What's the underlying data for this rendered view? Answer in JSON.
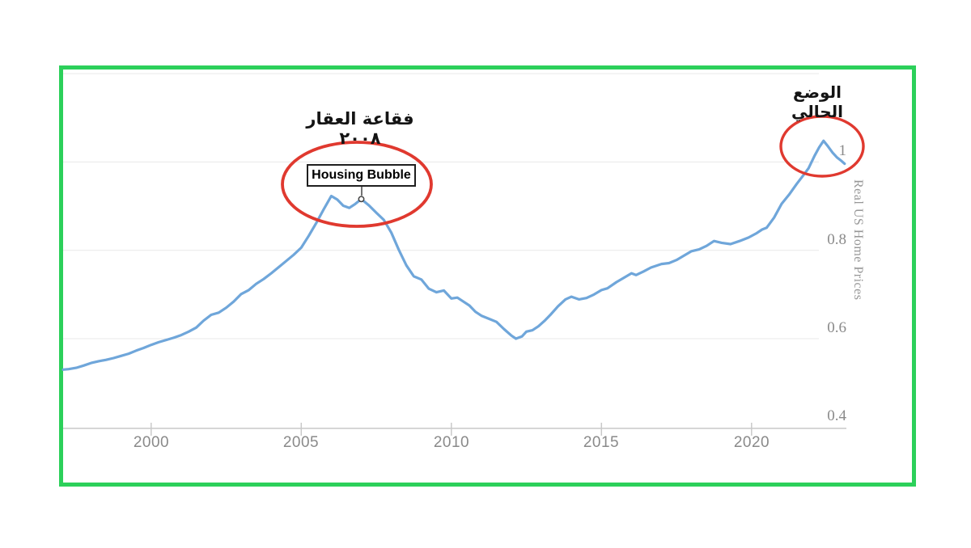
{
  "annotations": {
    "bubble_label_ar": "فقاعة العقار ٢٠٠٨",
    "current_label_ar": "الوضع الحالي",
    "housing_bubble_box_label": "Housing Bubble"
  },
  "colors": {
    "frame_green": "#2cd05a",
    "line_blue": "#6fa6da",
    "ellipse_red": "#e0392f",
    "gridline": "#e9e9e9",
    "axis": "#c9c9c9",
    "tick_label": "#8a8a8a"
  },
  "chart_data": {
    "type": "line",
    "title": "",
    "ylabel": "Real US Home Prices",
    "xlabel": "",
    "legend": "none",
    "grid": "horizontal",
    "x_ticks": [
      2000,
      2005,
      2010,
      2015,
      2020
    ],
    "y_ticks": [
      {
        "value": 1.0,
        "label": "1"
      },
      {
        "value": 0.8,
        "label": "0.8"
      },
      {
        "value": 0.6,
        "label": "0.6"
      },
      {
        "value": 0.4,
        "label": "0.4"
      }
    ],
    "y_gridlines": [
      1.2,
      1.0,
      0.8,
      0.6
    ],
    "xlim": [
      1997.0,
      2023.3
    ],
    "ylim": [
      0.4,
      1.25
    ],
    "marked_point": {
      "x": 2007.0,
      "y": 0.916,
      "label": "Housing Bubble"
    },
    "circled_regions": [
      {
        "name": "housing-bubble-2008",
        "x_center": 2006.85,
        "y_center": 0.895
      },
      {
        "name": "current-situation",
        "x_center": 2022.35,
        "y_center": 1.035
      }
    ],
    "series": [
      {
        "name": "Real US Home Prices",
        "color": "#6fa6da",
        "x": [
          1997.07,
          1997.25,
          1997.5,
          1997.75,
          1998.0,
          1998.25,
          1998.5,
          1998.75,
          1999.0,
          1999.25,
          1999.5,
          1999.75,
          2000.0,
          2000.25,
          2000.5,
          2000.75,
          2001.0,
          2001.25,
          2001.5,
          2001.75,
          2002.0,
          2002.25,
          2002.5,
          2002.75,
          2003.0,
          2003.25,
          2003.5,
          2003.75,
          2004.0,
          2004.25,
          2004.5,
          2004.75,
          2005.0,
          2005.25,
          2005.5,
          2005.75,
          2006.0,
          2006.2,
          2006.4,
          2006.6,
          2006.8,
          2007.0,
          2007.25,
          2007.5,
          2007.75,
          2008.0,
          2008.25,
          2008.5,
          2008.75,
          2009.0,
          2009.25,
          2009.5,
          2009.75,
          2010.0,
          2010.2,
          2010.4,
          2010.6,
          2010.8,
          2011.0,
          2011.25,
          2011.5,
          2011.75,
          2012.0,
          2012.15,
          2012.35,
          2012.5,
          2012.7,
          2012.9,
          2013.1,
          2013.3,
          2013.55,
          2013.8,
          2014.0,
          2014.25,
          2014.5,
          2014.75,
          2015.0,
          2015.2,
          2015.5,
          2015.75,
          2016.0,
          2016.15,
          2016.4,
          2016.65,
          2017.0,
          2017.25,
          2017.5,
          2017.75,
          2018.0,
          2018.25,
          2018.5,
          2018.75,
          2019.0,
          2019.3,
          2019.6,
          2019.9,
          2020.15,
          2020.35,
          2020.5,
          2020.75,
          2021.0,
          2021.25,
          2021.5,
          2021.75,
          2021.9,
          2022.1,
          2022.25,
          2022.4,
          2022.55,
          2022.7,
          2022.85,
          2023.0,
          2023.1
        ],
        "y": [
          0.53,
          0.531,
          0.534,
          0.539,
          0.545,
          0.549,
          0.552,
          0.556,
          0.561,
          0.566,
          0.573,
          0.579,
          0.586,
          0.592,
          0.597,
          0.602,
          0.608,
          0.616,
          0.625,
          0.641,
          0.654,
          0.659,
          0.67,
          0.684,
          0.701,
          0.71,
          0.724,
          0.735,
          0.748,
          0.762,
          0.776,
          0.79,
          0.806,
          0.833,
          0.862,
          0.893,
          0.923,
          0.915,
          0.901,
          0.896,
          0.905,
          0.916,
          0.902,
          0.885,
          0.869,
          0.84,
          0.801,
          0.766,
          0.741,
          0.734,
          0.713,
          0.705,
          0.709,
          0.691,
          0.693,
          0.684,
          0.675,
          0.661,
          0.652,
          0.645,
          0.638,
          0.622,
          0.607,
          0.6,
          0.605,
          0.616,
          0.619,
          0.628,
          0.64,
          0.654,
          0.673,
          0.689,
          0.695,
          0.689,
          0.692,
          0.7,
          0.71,
          0.714,
          0.728,
          0.738,
          0.748,
          0.744,
          0.752,
          0.761,
          0.769,
          0.771,
          0.778,
          0.788,
          0.798,
          0.802,
          0.81,
          0.821,
          0.817,
          0.814,
          0.821,
          0.829,
          0.838,
          0.847,
          0.851,
          0.874,
          0.905,
          0.926,
          0.95,
          0.972,
          0.986,
          1.014,
          1.033,
          1.048,
          1.035,
          1.021,
          1.01,
          1.002,
          0.996
        ]
      }
    ]
  }
}
